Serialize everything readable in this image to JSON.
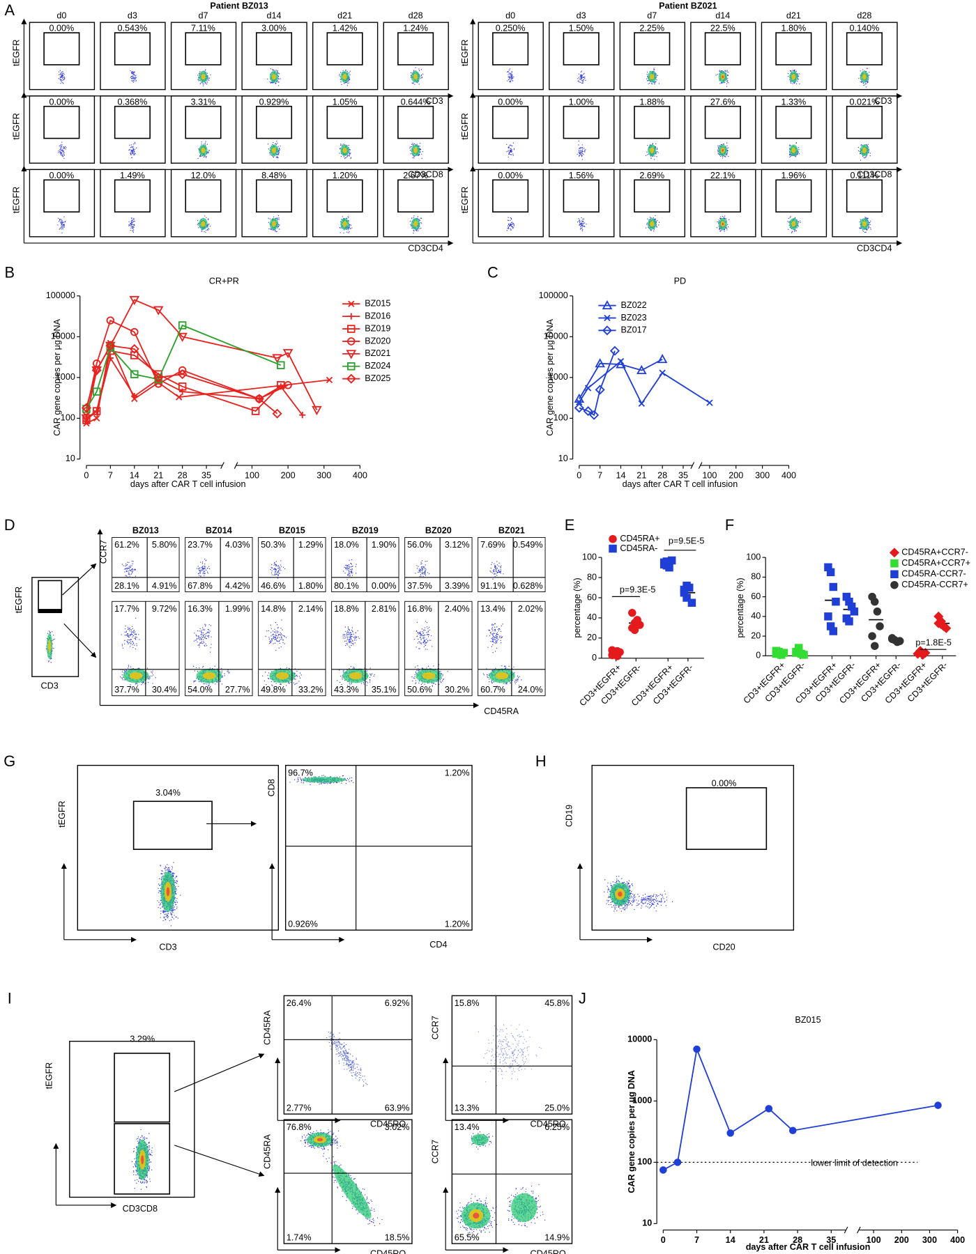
{
  "flow": {
    "A": {
      "label": "A",
      "y_axis": "tEGFR",
      "groups": [
        {
          "title": "Patient BZ013",
          "days": [
            "d0",
            "d3",
            "d7",
            "d14",
            "d21",
            "d28"
          ],
          "rows": [
            {
              "x_axis": "CD3",
              "gates": [
                "0.00%",
                "0.543%",
                "7.11%",
                "3.00%",
                "1.42%",
                "1.24%"
              ]
            },
            {
              "x_axis": "CD3CD8",
              "gates": [
                "0.00%",
                "0.368%",
                "3.31%",
                "0.929%",
                "1.05%",
                "0.644%"
              ]
            },
            {
              "x_axis": "CD3CD4",
              "gates": [
                "0.00%",
                "1.49%",
                "12.0%",
                "8.48%",
                "1.20%",
                "2.67%"
              ]
            }
          ]
        },
        {
          "title": "Patient BZ021",
          "days": [
            "d0",
            "d3",
            "d7",
            "d14",
            "d21",
            "d28"
          ],
          "rows": [
            {
              "x_axis": "CD3",
              "gates": [
                "0.250%",
                "1.50%",
                "2.25%",
                "22.5%",
                "1.80%",
                "0.140%"
              ]
            },
            {
              "x_axis": "CD3CD8",
              "gates": [
                "0.00%",
                "1.00%",
                "1.88%",
                "27.6%",
                "1.33%",
                "0.021%"
              ]
            },
            {
              "x_axis": "CD3CD4",
              "gates": [
                "0.00%",
                "1.56%",
                "2.69%",
                "22.1%",
                "1.96%",
                "0.111%"
              ]
            }
          ]
        }
      ]
    },
    "D": {
      "label": "D",
      "gate_plot": {
        "y_axis": "tEGFR",
        "x_axis": "CD3"
      },
      "y_axis": "CCR7",
      "x_axis": "CD45RA",
      "samples": [
        "BZ013",
        "BZ014",
        "BZ015",
        "BZ019",
        "BZ020",
        "BZ021"
      ],
      "rows": [
        [
          [
            "61.2%",
            "5.80%",
            "28.1%",
            "4.91%"
          ],
          [
            "23.7%",
            "4.03%",
            "67.8%",
            "4.42%"
          ],
          [
            "50.3%",
            "1.29%",
            "46.6%",
            "1.80%"
          ],
          [
            "18.0%",
            "1.90%",
            "80.1%",
            "0.00%"
          ],
          [
            "56.0%",
            "3.12%",
            "37.5%",
            "3.39%"
          ],
          [
            "7.69%",
            "0.549%",
            "91.1%",
            "0.628%"
          ]
        ],
        [
          [
            "17.7%",
            "9.72%",
            "37.7%",
            "30.4%"
          ],
          [
            "16.3%",
            "1.99%",
            "54.0%",
            "27.7%"
          ],
          [
            "14.8%",
            "2.14%",
            "49.8%",
            "33.2%"
          ],
          [
            "18.8%",
            "2.81%",
            "43.3%",
            "35.1%"
          ],
          [
            "16.8%",
            "2.40%",
            "50.6%",
            "30.2%"
          ],
          [
            "13.4%",
            "2.02%",
            "60.7%",
            "24.0%"
          ]
        ]
      ]
    },
    "G": {
      "label": "G",
      "gate_plot": {
        "y_axis": "tEGFR",
        "x_axis": "CD3",
        "gate": "3.04%"
      },
      "quad_plot": {
        "y_axis": "CD8",
        "x_axis": "CD4",
        "quadrants": [
          "96.7%",
          "1.20%",
          "0.926%",
          "1.20%"
        ]
      }
    },
    "H": {
      "label": "H",
      "y_axis": "CD19",
      "x_axis": "CD20",
      "gate": "0.00%"
    },
    "I": {
      "label": "I",
      "gate_plot": {
        "y_axis": "tEGFR",
        "x_axis": "CD3CD8",
        "gate": "3.29%"
      },
      "quad_plots": [
        {
          "y_axis": "CD45RA",
          "x_axis": "CD45RO",
          "quadrants": [
            "26.4%",
            "6.92%",
            "2.77%",
            "63.9%"
          ]
        },
        {
          "y_axis": "CCR7",
          "x_axis": "CD45RO",
          "quadrants": [
            "15.8%",
            "45.8%",
            "13.3%",
            "25.0%"
          ]
        },
        {
          "y_axis": "CD45RA",
          "x_axis": "CD45RO",
          "quadrants": [
            "76.8%",
            "3.02%",
            "1.74%",
            "18.5%"
          ]
        },
        {
          "y_axis": "CCR7",
          "x_axis": "CD45RO",
          "quadrants": [
            "13.4%",
            "6.25%",
            "65.5%",
            "14.9%"
          ]
        }
      ]
    }
  },
  "chart_data": [
    {
      "label": "B",
      "type": "line",
      "title": "CR+PR",
      "x_label": "days after CAR T cell infusion",
      "y_label": "CAR gene copies per μg DNA",
      "yscale": "log",
      "ylim": [
        10,
        100000
      ],
      "yticks": [
        10,
        100,
        1000,
        10000,
        100000
      ],
      "xlim": [
        0,
        400
      ],
      "xticks": [
        0,
        7,
        14,
        21,
        28,
        35,
        100,
        200,
        300,
        400
      ],
      "series": [
        {
          "name": "BZ015",
          "color": "#e8221e",
          "marker": "x",
          "x": [
            0,
            3,
            7,
            14,
            21,
            27,
            315
          ],
          "values": [
            75,
            100,
            7000,
            300,
            750,
            330,
            870
          ]
        },
        {
          "name": "BZ016",
          "color": "#e8221e",
          "marker": "+",
          "x": [
            0,
            3,
            7,
            14,
            21,
            28,
            120,
            180,
            240
          ],
          "values": [
            100,
            150,
            3000,
            350,
            900,
            450,
            300,
            600,
            120
          ]
        },
        {
          "name": "BZ019",
          "color": "#e8221e",
          "marker": "square",
          "x": [
            0,
            3,
            7,
            14,
            21,
            28,
            110,
            180
          ],
          "values": [
            90,
            150,
            4500,
            3500,
            1200,
            600,
            150,
            650
          ]
        },
        {
          "name": "BZ020",
          "color": "#e8221e",
          "marker": "circle",
          "x": [
            0,
            3,
            7,
            14,
            21,
            28,
            120,
            200
          ],
          "values": [
            150,
            2200,
            25000,
            13000,
            700,
            1500,
            300,
            650
          ]
        },
        {
          "name": "BZ021",
          "color": "#e8221e",
          "marker": "triangle-down",
          "x": [
            0,
            3,
            7,
            14,
            21,
            28,
            170,
            200,
            280
          ],
          "values": [
            100,
            1500,
            6000,
            80000,
            45000,
            10000,
            3000,
            4000,
            160
          ]
        },
        {
          "name": "BZ024",
          "color": "#2ca02c",
          "marker": "square",
          "x": [
            0,
            3,
            7,
            14,
            21,
            28,
            180
          ],
          "values": [
            170,
            450,
            5500,
            1200,
            900,
            19000,
            2000
          ]
        },
        {
          "name": "BZ025",
          "color": "#e8221e",
          "marker": "diamond",
          "x": [
            0,
            3,
            7,
            14,
            21,
            28,
            120,
            170
          ],
          "values": [
            180,
            1500,
            6000,
            5000,
            1000,
            1200,
            300,
            130
          ]
        }
      ]
    },
    {
      "label": "C",
      "type": "line",
      "title": "PD",
      "x_label": "days after CAR T cell infusion",
      "y_label": "CAR gene copies per μg DNA",
      "yscale": "log",
      "ylim": [
        10,
        100000
      ],
      "yticks": [
        10,
        100,
        1000,
        10000,
        100000
      ],
      "xlim": [
        0,
        400
      ],
      "xticks": [
        0,
        7,
        14,
        21,
        28,
        35,
        100,
        200,
        300,
        400
      ],
      "series": [
        {
          "name": "BZ022",
          "color": "#1f3fd6",
          "marker": "triangle-up",
          "x": [
            0,
            7,
            14,
            21,
            28
          ],
          "values": [
            300,
            2200,
            2100,
            1500,
            2800
          ]
        },
        {
          "name": "BZ023",
          "color": "#1f3fd6",
          "marker": "x",
          "x": [
            0,
            3,
            14,
            21,
            28,
            100
          ],
          "values": [
            250,
            550,
            2500,
            230,
            1300,
            240
          ]
        },
        {
          "name": "BZ017",
          "color": "#1f3fd6",
          "marker": "diamond",
          "x": [
            0,
            3,
            5,
            7,
            12
          ],
          "values": [
            180,
            150,
            120,
            500,
            4500
          ]
        }
      ]
    },
    {
      "label": "E",
      "type": "dot",
      "y_label": "percentage (%)",
      "ylim": [
        0,
        100
      ],
      "yticks": [
        0,
        20,
        40,
        60,
        80,
        100
      ],
      "categories": [
        "CD3+tEGFR+",
        "CD3+tEGFR-",
        "CD3+tEGFR+",
        "CD3+tEGFR-"
      ],
      "series": [
        {
          "name": "CD45RA+",
          "color": "#e41a1c",
          "marker": "circle",
          "values": [
            [
              3,
              5,
              2,
              6,
              8,
              4,
              7
            ],
            [
              30,
              35,
              38,
              33,
              45,
              28
            ],
            null,
            null
          ]
        },
        {
          "name": "CD45RA-",
          "color": "#1f3fd6",
          "marker": "square",
          "values": [
            null,
            null,
            [
              95,
              92,
              90,
              97,
              93,
              96
            ],
            [
              65,
              60,
              70,
              55,
              68,
              72
            ]
          ]
        }
      ],
      "annotations": [
        "p=9.3E-5",
        "p=9.5E-5"
      ]
    },
    {
      "label": "F",
      "type": "dot",
      "y_label": "percentage (%)",
      "ylim": [
        0,
        100
      ],
      "yticks": [
        0,
        20,
        40,
        60,
        80,
        100
      ],
      "categories": [
        "CD3+tEGFR+",
        "CD3+tEGFR-",
        "CD3+tEGFR+",
        "CD3+tEGFR-",
        "CD3+tEGFR+",
        "CD3+tEGFR-",
        "CD3+tEGFR+",
        "CD3+tEGFR-"
      ],
      "series": [
        {
          "name": "CD45RA+CCR7-",
          "color": "#e41a1c",
          "marker": "diamond",
          "values": [
            null,
            null,
            null,
            null,
            null,
            null,
            [
              2,
              4,
              1,
              3,
              2,
              5
            ],
            [
              40,
              35,
              30,
              28,
              33,
              32
            ]
          ]
        },
        {
          "name": "CD45RA+CCR7+",
          "color": "#33dd33",
          "marker": "square",
          "values": [
            [
              2,
              4,
              1,
              3,
              5,
              2
            ],
            [
              3,
              6,
              2,
              1,
              4,
              8
            ],
            null,
            null,
            null,
            null,
            null,
            null
          ]
        },
        {
          "name": "CD45RA-CCR7-",
          "color": "#1f3fd6",
          "marker": "square",
          "values": [
            null,
            null,
            [
              90,
              85,
              70,
              55,
              40,
              30,
              25
            ],
            [
              60,
              55,
              50,
              45,
              38,
              35
            ],
            null,
            null,
            null,
            null
          ]
        },
        {
          "name": "CD45RA-CCR7+",
          "color": "#333333",
          "marker": "circle",
          "values": [
            null,
            null,
            null,
            null,
            [
              60,
              55,
              45,
              30,
              20,
              10
            ],
            [
              18,
              16,
              14,
              15,
              17
            ],
            null,
            null
          ]
        }
      ],
      "annotations": [
        "p=1.8E-5"
      ]
    },
    {
      "label": "J",
      "type": "line",
      "title": "BZ015",
      "x_label": "days after CAR T cell infusion",
      "y_label": "CAR gene copies per μg DNA",
      "yscale": "log",
      "ylim": [
        10,
        10000
      ],
      "yticks": [
        10,
        100,
        1000,
        10000
      ],
      "xlim": [
        0,
        400
      ],
      "xticks": [
        0,
        7,
        14,
        21,
        28,
        35,
        100,
        200,
        300,
        400
      ],
      "reference_line": 100,
      "annotations": [
        "lower limit of detection"
      ],
      "series": [
        {
          "color": "#1f3fd6",
          "marker": "dot",
          "x": [
            0,
            3,
            7,
            14,
            22,
            27,
            330
          ],
          "values": [
            75,
            100,
            7000,
            300,
            750,
            330,
            850
          ]
        }
      ]
    }
  ]
}
